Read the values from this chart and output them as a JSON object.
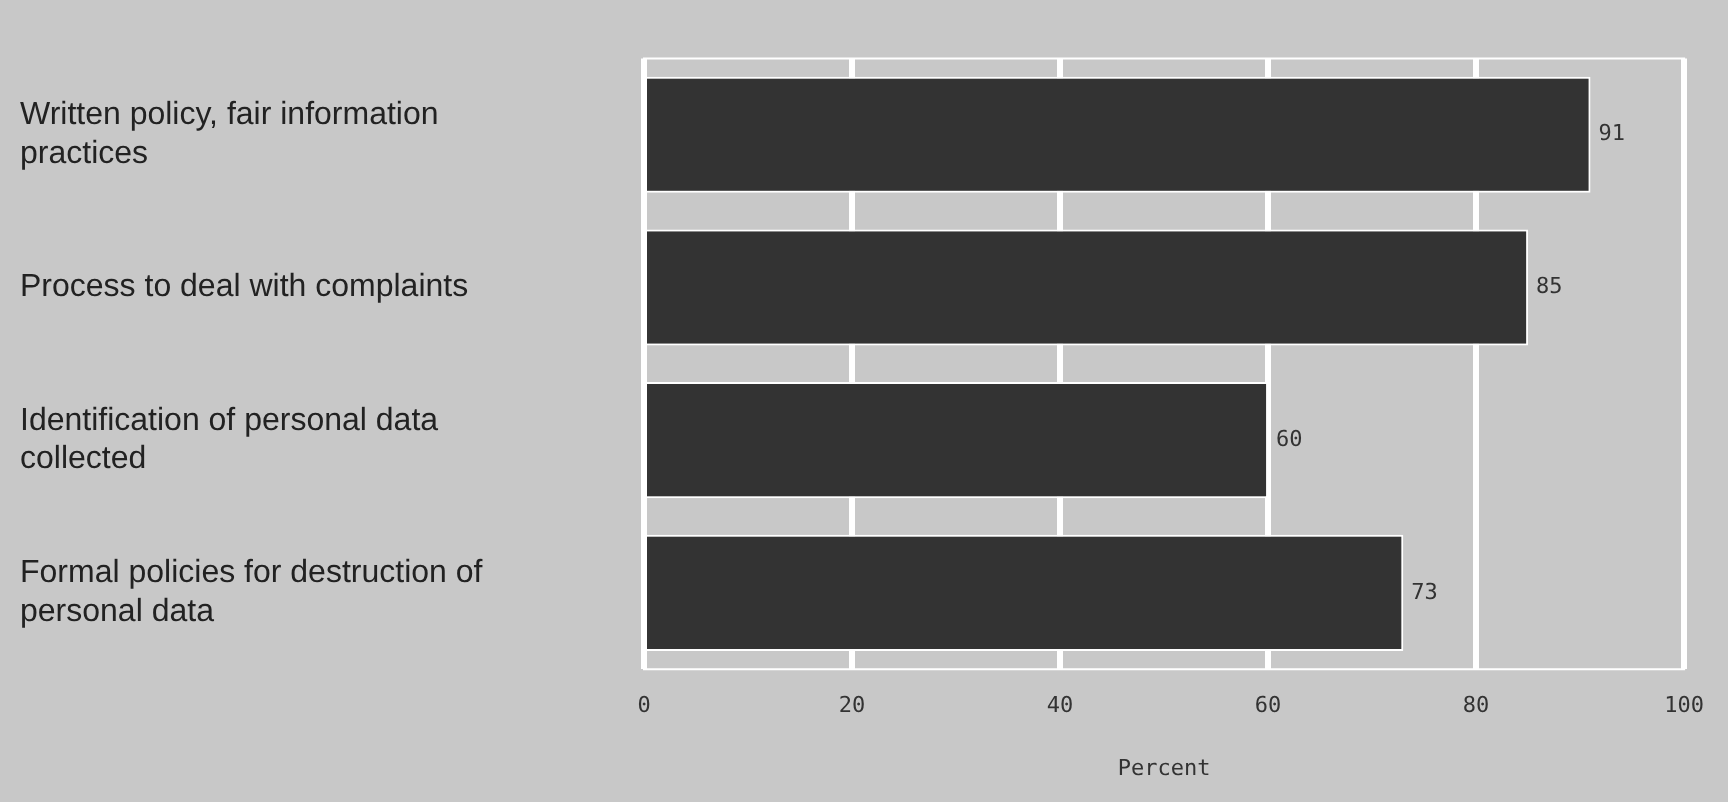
{
  "chart_data": {
    "type": "bar",
    "orientation": "horizontal",
    "xlabel": "Percent",
    "categories": [
      "Written policy, fair information practices",
      "Process to deal with complaints",
      "Identification of personal data collected",
      "Formal policies for destruction of personal data"
    ],
    "values": [
      91,
      85,
      60,
      73
    ],
    "color": "#333333",
    "xlim": [
      0,
      100
    ],
    "xticks": [
      0,
      20,
      40,
      60,
      80,
      100
    ],
    "grid": "x",
    "data_labels": true,
    "legend": false
  }
}
